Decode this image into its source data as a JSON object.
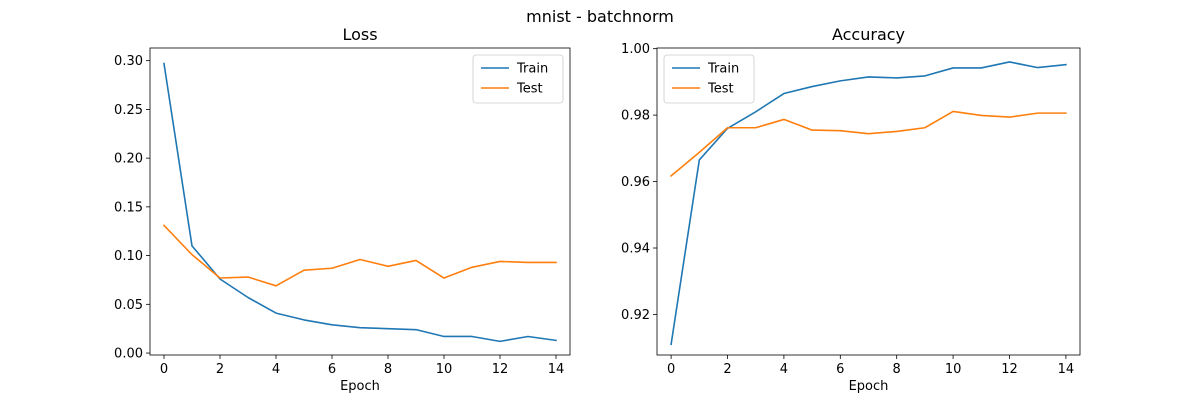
{
  "figure": {
    "suptitle": "mnist - batchnorm"
  },
  "chart_data": [
    {
      "type": "line",
      "title": "Loss",
      "xlabel": "Epoch",
      "ylabel": "",
      "x": [
        0,
        1,
        2,
        3,
        4,
        5,
        6,
        7,
        8,
        9,
        10,
        11,
        12,
        13,
        14
      ],
      "xlim": [
        -0.5,
        14.5
      ],
      "ylim": [
        -0.002,
        0.313
      ],
      "xticks": [
        0,
        2,
        4,
        6,
        8,
        10,
        12,
        14
      ],
      "xtick_labels": [
        "0",
        "2",
        "4",
        "6",
        "8",
        "10",
        "12",
        "14"
      ],
      "yticks": [
        0.0,
        0.05,
        0.1,
        0.15,
        0.2,
        0.25,
        0.3
      ],
      "ytick_labels": [
        "0.00",
        "0.05",
        "0.10",
        "0.15",
        "0.20",
        "0.25",
        "0.30"
      ],
      "grid": false,
      "legend": "top-right",
      "series": [
        {
          "name": "Train",
          "color": "#1f77b4",
          "values": [
            0.297,
            0.11,
            0.076,
            0.057,
            0.041,
            0.034,
            0.029,
            0.026,
            0.025,
            0.024,
            0.017,
            0.017,
            0.012,
            0.017,
            0.013
          ]
        },
        {
          "name": "Test",
          "color": "#ff7f0e",
          "values": [
            0.131,
            0.101,
            0.077,
            0.078,
            0.069,
            0.085,
            0.087,
            0.096,
            0.089,
            0.095,
            0.077,
            0.088,
            0.094,
            0.093,
            0.093
          ]
        }
      ]
    },
    {
      "type": "line",
      "title": "Accuracy",
      "xlabel": "Epoch",
      "ylabel": "",
      "x": [
        0,
        1,
        2,
        3,
        4,
        5,
        6,
        7,
        8,
        9,
        10,
        11,
        12,
        13,
        14
      ],
      "xlim": [
        -0.5,
        14.5
      ],
      "ylim": [
        0.9078,
        1.0002
      ],
      "xticks": [
        0,
        2,
        4,
        6,
        8,
        10,
        12,
        14
      ],
      "xtick_labels": [
        "0",
        "2",
        "4",
        "6",
        "8",
        "10",
        "12",
        "14"
      ],
      "yticks": [
        0.92,
        0.94,
        0.96,
        0.98,
        1.0
      ],
      "ytick_labels": [
        "0.92",
        "0.94",
        "0.96",
        "0.98",
        "1.00"
      ],
      "grid": false,
      "legend": "top-left",
      "series": [
        {
          "name": "Train",
          "color": "#1f77b4",
          "values": [
            0.911,
            0.9665,
            0.976,
            0.981,
            0.9865,
            0.9886,
            0.9903,
            0.9915,
            0.9912,
            0.9918,
            0.9942,
            0.9942,
            0.996,
            0.9943,
            0.9952
          ]
        },
        {
          "name": "Test",
          "color": "#ff7f0e",
          "values": [
            0.9617,
            0.9688,
            0.9762,
            0.9762,
            0.9787,
            0.9755,
            0.9753,
            0.9744,
            0.9751,
            0.9762,
            0.9811,
            0.9799,
            0.9794,
            0.9806,
            0.9806
          ]
        }
      ]
    }
  ]
}
